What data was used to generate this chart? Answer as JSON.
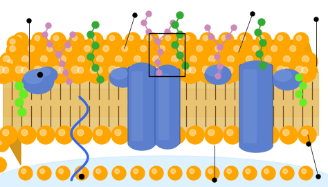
{
  "bg_color": "#ffffff",
  "orange": "#FFA500",
  "orange_dark": "#E89000",
  "tan": "#E8C87A",
  "tail_color": "#6B3A1F",
  "blue_p": "#5B7FCC",
  "blue_light": "#7A99DD",
  "green_dark": "#33AA33",
  "green_bright": "#66EE22",
  "pink": "#CC88BB",
  "wavy_blue": "#3366EE",
  "figsize": [
    4.74,
    2.7
  ],
  "dpi": 100
}
